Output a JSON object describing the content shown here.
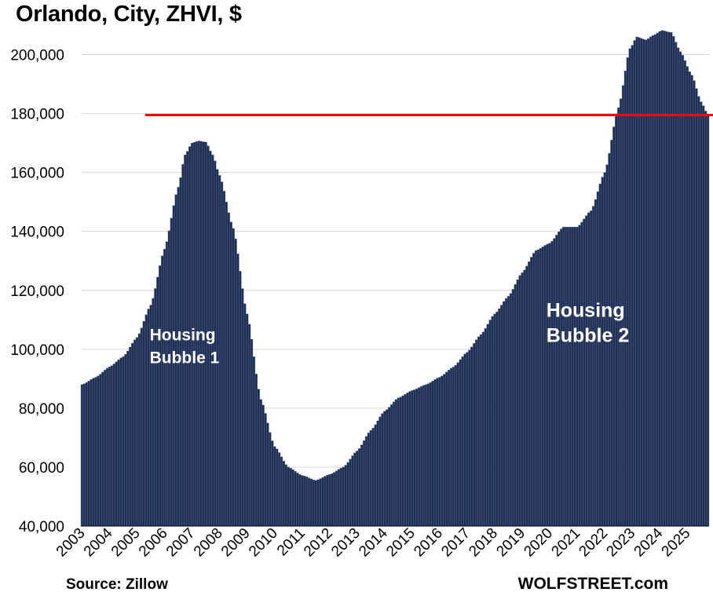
{
  "title": "Orlando, City, ZHVI, $",
  "source": "Source: Zillow",
  "brand": "WOLFSTREET.com",
  "colors": {
    "bar": "#1f2d4e",
    "bar_edge": "#5a7ab8",
    "reference_line": "#ff0000",
    "grid": "#d9d9d9"
  },
  "chart_data": {
    "type": "bar",
    "title": "Orlando, City, ZHVI, $",
    "xlabel": "",
    "ylabel": "",
    "ylim": [
      40000,
      210000
    ],
    "yticks": [
      40000,
      60000,
      80000,
      100000,
      120000,
      140000,
      160000,
      180000,
      200000
    ],
    "ytick_labels": [
      "40,000",
      "60,000",
      "80,000",
      "100,000",
      "120,000",
      "140,000",
      "160,000",
      "180,000",
      "200,000"
    ],
    "grid": true,
    "x_tick_labels": [
      "2003",
      "2004",
      "2005",
      "2006",
      "2007",
      "2008",
      "2009",
      "2010",
      "2011",
      "2012",
      "2013",
      "2014",
      "2015",
      "2016",
      "2017",
      "2018",
      "2019",
      "2020",
      "2021",
      "2022",
      "2023",
      "2024",
      "2025"
    ],
    "frequency": "monthly",
    "start": "2003-01",
    "end": "2025-10",
    "anchors": [
      [
        "2003-01",
        88000
      ],
      [
        "2003-07",
        90500
      ],
      [
        "2004-01",
        94000
      ],
      [
        "2004-07",
        97500
      ],
      [
        "2005-01",
        104000
      ],
      [
        "2005-07",
        115000
      ],
      [
        "2006-01",
        134000
      ],
      [
        "2006-07",
        155000
      ],
      [
        "2006-10",
        166000
      ],
      [
        "2007-01",
        170000
      ],
      [
        "2007-04",
        170700
      ],
      [
        "2007-07",
        170300
      ],
      [
        "2007-10",
        166000
      ],
      [
        "2008-01",
        159000
      ],
      [
        "2008-07",
        141000
      ],
      [
        "2009-01",
        112000
      ],
      [
        "2009-07",
        83000
      ],
      [
        "2010-01",
        67000
      ],
      [
        "2010-07",
        60000
      ],
      [
        "2011-01",
        57200
      ],
      [
        "2011-07",
        55500
      ],
      [
        "2012-01",
        57500
      ],
      [
        "2012-07",
        60000
      ],
      [
        "2013-01",
        65500
      ],
      [
        "2013-07",
        72500
      ],
      [
        "2014-01",
        79000
      ],
      [
        "2014-07",
        83500
      ],
      [
        "2015-01",
        86000
      ],
      [
        "2015-07",
        88000
      ],
      [
        "2016-01",
        90500
      ],
      [
        "2016-07",
        94000
      ],
      [
        "2017-01",
        99000
      ],
      [
        "2017-07",
        105000
      ],
      [
        "2018-01",
        112000
      ],
      [
        "2018-07",
        118000
      ],
      [
        "2019-01",
        126000
      ],
      [
        "2019-07",
        133500
      ],
      [
        "2020-01",
        136000
      ],
      [
        "2020-07",
        141500
      ],
      [
        "2021-01",
        141500
      ],
      [
        "2021-07",
        147000
      ],
      [
        "2022-01",
        160000
      ],
      [
        "2022-07",
        182000
      ],
      [
        "2022-12",
        202000
      ],
      [
        "2023-03",
        206000
      ],
      [
        "2023-07",
        205000
      ],
      [
        "2023-10",
        206500
      ],
      [
        "2024-02",
        208200
      ],
      [
        "2024-06",
        207500
      ],
      [
        "2024-10",
        201000
      ],
      [
        "2025-03",
        193000
      ],
      [
        "2025-07",
        184000
      ],
      [
        "2025-10",
        179500
      ]
    ],
    "reference_line": {
      "value": 179500,
      "from": "2005-05",
      "to": "2025-10"
    },
    "annotations": [
      {
        "text_lines": [
          "Housing",
          "Bubble 1"
        ],
        "x": "2005-07",
        "y": 103000
      },
      {
        "text_lines": [
          "Housing",
          "Bubble 2"
        ],
        "x": "2019-12",
        "y": 111000
      }
    ]
  }
}
